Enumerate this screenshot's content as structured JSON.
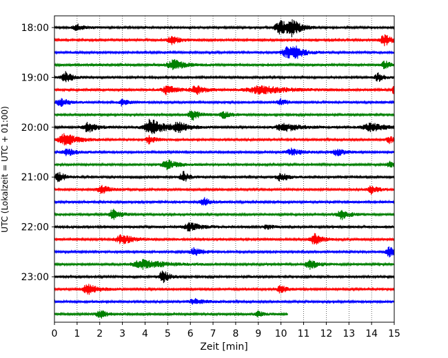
{
  "chart_data": {
    "type": "line",
    "subtype": "helicorder",
    "xlabel": "Zeit  [min]",
    "ylabel": "UTC (Lokalzeit = UTC + 01:00)",
    "xlim": [
      0,
      15
    ],
    "x_ticks": [
      0,
      1,
      2,
      3,
      4,
      5,
      6,
      7,
      8,
      9,
      10,
      11,
      12,
      13,
      14,
      15
    ],
    "y_tick_labels": [
      "18:00",
      "19:00",
      "20:00",
      "21:00",
      "22:00",
      "23:00"
    ],
    "grid": "vertical dotted",
    "trace_minutes": 15,
    "trace_colors": [
      "#000000",
      "#ff0000",
      "#0000ff",
      "#008000"
    ],
    "traces": [
      {
        "start": "18:00",
        "end_min": 15,
        "events": [
          [
            1.0,
            0.35,
            5
          ],
          [
            10.0,
            0.5,
            10
          ],
          [
            10.5,
            0.4,
            10
          ]
        ]
      },
      {
        "start": "18:15",
        "end_min": 15,
        "events": [
          [
            5.2,
            0.4,
            6
          ],
          [
            14.6,
            0.4,
            8
          ]
        ]
      },
      {
        "start": "18:30",
        "end_min": 15,
        "events": [
          [
            10.3,
            0.5,
            8
          ],
          [
            10.7,
            0.4,
            6
          ]
        ]
      },
      {
        "start": "18:45",
        "end_min": 15,
        "events": [
          [
            5.3,
            0.6,
            7
          ],
          [
            14.6,
            0.3,
            6
          ]
        ]
      },
      {
        "start": "19:00",
        "end_min": 15,
        "events": [
          [
            0.5,
            0.35,
            8
          ],
          [
            14.3,
            0.3,
            6
          ]
        ]
      },
      {
        "start": "19:15",
        "end_min": 15,
        "events": [
          [
            5.0,
            0.5,
            7
          ],
          [
            6.3,
            0.5,
            6
          ],
          [
            9.2,
            1.3,
            6
          ],
          [
            15.0,
            0.2,
            6
          ]
        ]
      },
      {
        "start": "19:30",
        "end_min": 15,
        "events": [
          [
            0.3,
            0.4,
            6
          ],
          [
            3.0,
            0.3,
            5
          ],
          [
            10.0,
            0.3,
            5
          ]
        ]
      },
      {
        "start": "19:45",
        "end_min": 15,
        "events": [
          [
            6.1,
            0.35,
            8
          ],
          [
            7.5,
            0.35,
            5
          ]
        ]
      },
      {
        "start": "20:00",
        "end_min": 15,
        "events": [
          [
            1.5,
            0.4,
            8
          ],
          [
            4.3,
            0.7,
            12
          ],
          [
            5.5,
            0.5,
            7
          ],
          [
            10.2,
            0.8,
            6
          ],
          [
            14.0,
            0.8,
            6
          ]
        ]
      },
      {
        "start": "20:15",
        "end_min": 15,
        "events": [
          [
            0.5,
            0.6,
            9
          ],
          [
            4.2,
            0.3,
            6
          ],
          [
            14.8,
            0.3,
            5
          ]
        ]
      },
      {
        "start": "20:30",
        "end_min": 15,
        "events": [
          [
            0.6,
            0.4,
            5
          ],
          [
            10.5,
            0.5,
            5
          ],
          [
            12.5,
            0.4,
            5
          ]
        ]
      },
      {
        "start": "20:45",
        "end_min": 15,
        "events": [
          [
            5.0,
            0.5,
            7
          ],
          [
            14.8,
            0.2,
            5
          ]
        ]
      },
      {
        "start": "21:00",
        "end_min": 15,
        "events": [
          [
            0.2,
            0.3,
            8
          ],
          [
            5.7,
            0.3,
            8
          ],
          [
            10.0,
            0.4,
            6
          ]
        ]
      },
      {
        "start": "21:15",
        "end_min": 15,
        "events": [
          [
            2.1,
            0.4,
            6
          ],
          [
            14.0,
            0.3,
            7
          ]
        ]
      },
      {
        "start": "21:30",
        "end_min": 15,
        "events": [
          [
            6.6,
            0.35,
            6
          ]
        ]
      },
      {
        "start": "21:45",
        "end_min": 15,
        "events": [
          [
            2.6,
            0.35,
            8
          ],
          [
            12.7,
            0.4,
            7
          ]
        ]
      },
      {
        "start": "22:00",
        "end_min": 15,
        "events": [
          [
            6.0,
            0.6,
            6
          ],
          [
            9.4,
            0.3,
            4
          ]
        ]
      },
      {
        "start": "22:15",
        "end_min": 15,
        "events": [
          [
            3.0,
            0.6,
            7
          ],
          [
            11.5,
            0.4,
            8
          ]
        ]
      },
      {
        "start": "22:30",
        "end_min": 15,
        "events": [
          [
            6.2,
            0.4,
            6
          ],
          [
            14.8,
            0.3,
            7
          ]
        ]
      },
      {
        "start": "22:45",
        "end_min": 15,
        "events": [
          [
            4.0,
            1.0,
            7
          ],
          [
            11.3,
            0.4,
            7
          ]
        ]
      },
      {
        "start": "23:00",
        "end_min": 15,
        "events": [
          [
            4.8,
            0.3,
            10
          ]
        ]
      },
      {
        "start": "23:15",
        "end_min": 15,
        "events": [
          [
            1.5,
            0.5,
            8
          ],
          [
            10.0,
            0.3,
            6
          ]
        ]
      },
      {
        "start": "23:30",
        "end_min": 15,
        "events": [
          [
            6.2,
            0.5,
            4
          ]
        ]
      },
      {
        "start": "23:45",
        "end_min": 10.3,
        "events": [
          [
            2.0,
            0.3,
            7
          ],
          [
            9.0,
            0.3,
            4
          ]
        ]
      }
    ]
  }
}
